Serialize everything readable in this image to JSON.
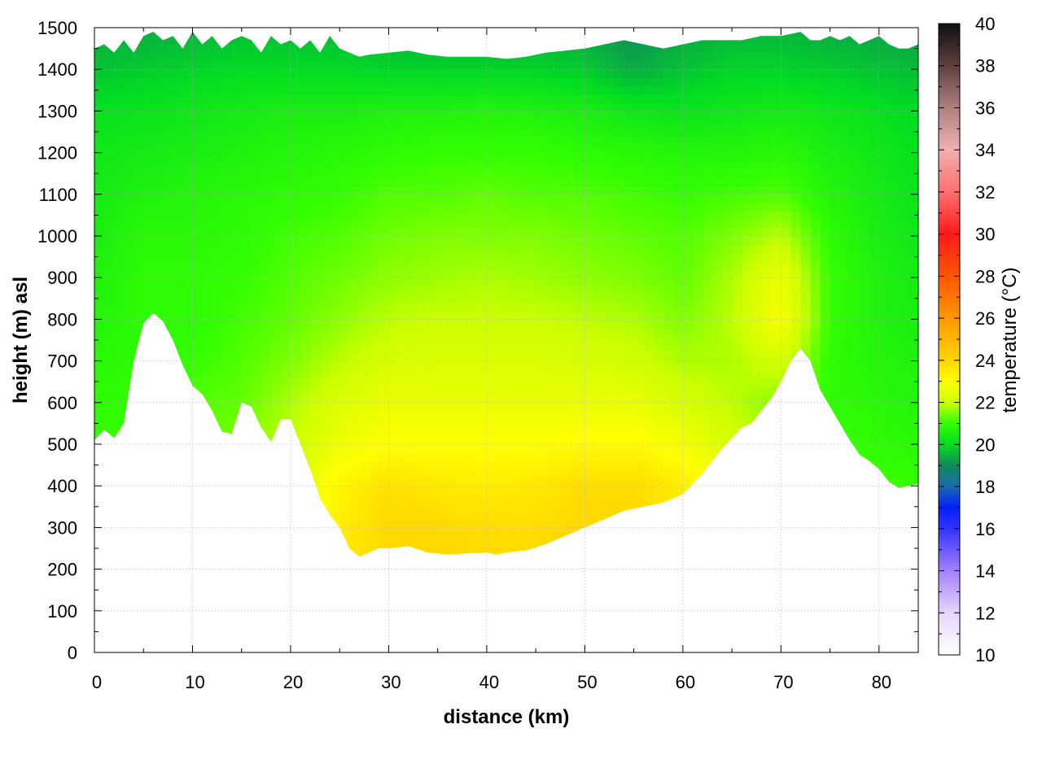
{
  "chart_data": {
    "type": "heatmap",
    "title": "",
    "xlabel": "distance (km)",
    "ylabel": "height (m) asl",
    "colorbar_label": "temperature (°C)",
    "xlim": [
      0,
      84
    ],
    "ylim": [
      0,
      1500
    ],
    "x_ticks": [
      0,
      10,
      20,
      30,
      40,
      50,
      60,
      70,
      80
    ],
    "y_ticks": [
      0,
      100,
      200,
      300,
      400,
      500,
      600,
      700,
      800,
      900,
      1000,
      1100,
      1200,
      1300,
      1400,
      1500
    ],
    "colorbar_range": [
      10,
      40
    ],
    "colorbar_ticks": [
      10,
      12,
      14,
      16,
      18,
      20,
      22,
      24,
      26,
      28,
      30,
      32,
      34,
      36,
      38,
      40
    ],
    "colormap": [
      {
        "t": 10,
        "color": "#ffffff"
      },
      {
        "t": 12,
        "color": "#e6d5ff"
      },
      {
        "t": 14,
        "color": "#a480ff"
      },
      {
        "t": 16,
        "color": "#3333ff"
      },
      {
        "t": 17,
        "color": "#0020ff"
      },
      {
        "t": 18,
        "color": "#1a6ab0"
      },
      {
        "t": 19,
        "color": "#118a5a"
      },
      {
        "t": 20,
        "color": "#00dd22"
      },
      {
        "t": 21,
        "color": "#33ff00"
      },
      {
        "t": 22,
        "color": "#ccff00"
      },
      {
        "t": 23,
        "color": "#ffff00"
      },
      {
        "t": 24,
        "color": "#ffd400"
      },
      {
        "t": 26,
        "color": "#ff9900"
      },
      {
        "t": 28,
        "color": "#ff5500"
      },
      {
        "t": 30,
        "color": "#ff1a1a"
      },
      {
        "t": 32,
        "color": "#ff6f6f"
      },
      {
        "t": 34,
        "color": "#f0b0b0"
      },
      {
        "t": 36,
        "color": "#b08080"
      },
      {
        "t": 38,
        "color": "#604040"
      },
      {
        "t": 40,
        "color": "#101010"
      }
    ],
    "grid": true,
    "terrain_profile": {
      "x_km": [
        0,
        1,
        2,
        3,
        4,
        5,
        6,
        7,
        8,
        9,
        10,
        11,
        12,
        13,
        14,
        15,
        16,
        17,
        18,
        19,
        20,
        21,
        22,
        23,
        24,
        25,
        26,
        27,
        28,
        29,
        30,
        32,
        34,
        36,
        38,
        40,
        41,
        42,
        44,
        46,
        48,
        50,
        52,
        54,
        56,
        58,
        60,
        62,
        64,
        66,
        67,
        68,
        69,
        70,
        71,
        72,
        73,
        74,
        75,
        76,
        77,
        78,
        79,
        80,
        81,
        82,
        83,
        84
      ],
      "height_m": [
        510,
        535,
        515,
        550,
        700,
        790,
        815,
        795,
        750,
        690,
        640,
        620,
        580,
        530,
        525,
        600,
        590,
        540,
        505,
        560,
        560,
        500,
        440,
        370,
        330,
        300,
        250,
        230,
        240,
        250,
        250,
        255,
        240,
        235,
        238,
        240,
        235,
        240,
        245,
        260,
        280,
        300,
        320,
        340,
        350,
        360,
        380,
        430,
        490,
        540,
        550,
        580,
        610,
        650,
        700,
        730,
        700,
        630,
        590,
        550,
        510,
        475,
        460,
        440,
        410,
        395,
        400,
        405
      ]
    },
    "temperature_field": {
      "x_km": [
        0,
        5,
        10,
        15,
        20,
        25,
        30,
        35,
        40,
        45,
        50,
        55,
        60,
        65,
        70,
        75,
        80,
        84
      ],
      "height_m": [
        200,
        300,
        400,
        500,
        600,
        700,
        800,
        900,
        1000,
        1100,
        1200,
        1300,
        1400,
        1500
      ],
      "values_c": [
        [
          21.2,
          21.3,
          21.5,
          21.8,
          22.5,
          23.4,
          23.9,
          23.9,
          23.8,
          23.8,
          23.9,
          23.9,
          23.6,
          22.8,
          22.0,
          21.4,
          21.2,
          21.1
        ],
        [
          21.2,
          21.3,
          21.5,
          21.8,
          22.5,
          23.4,
          23.9,
          23.9,
          23.8,
          23.8,
          23.9,
          23.9,
          23.6,
          22.8,
          22.0,
          21.4,
          21.2,
          21.1
        ],
        [
          21.2,
          21.3,
          21.5,
          21.8,
          22.4,
          23.2,
          23.7,
          23.5,
          23.4,
          23.5,
          23.8,
          23.8,
          23.4,
          22.6,
          21.9,
          21.3,
          21.1,
          21.0
        ],
        [
          21.0,
          21.1,
          21.3,
          21.5,
          22.0,
          22.7,
          23.0,
          23.0,
          23.0,
          23.0,
          23.1,
          23.1,
          22.8,
          22.2,
          21.6,
          21.1,
          20.9,
          20.8
        ],
        [
          20.9,
          21.0,
          21.2,
          21.3,
          21.8,
          22.3,
          22.6,
          22.6,
          22.6,
          22.6,
          22.6,
          22.6,
          22.2,
          21.9,
          21.5,
          20.9,
          20.8,
          20.7
        ],
        [
          20.8,
          20.9,
          21.0,
          21.2,
          21.5,
          21.9,
          22.2,
          22.3,
          22.3,
          22.3,
          22.2,
          22.1,
          21.8,
          21.8,
          22.2,
          20.9,
          20.7,
          20.6
        ],
        [
          20.7,
          20.9,
          20.9,
          21.1,
          21.3,
          21.6,
          21.9,
          22.0,
          22.0,
          22.0,
          21.9,
          21.8,
          21.5,
          21.9,
          22.9,
          21.0,
          20.6,
          20.5
        ],
        [
          20.6,
          20.9,
          20.9,
          21.0,
          21.2,
          21.4,
          21.6,
          21.7,
          21.8,
          21.7,
          21.6,
          21.5,
          21.3,
          21.8,
          22.6,
          21.0,
          20.6,
          20.4
        ],
        [
          20.5,
          20.8,
          20.8,
          20.9,
          21.1,
          21.2,
          21.4,
          21.5,
          21.5,
          21.5,
          21.4,
          21.3,
          21.2,
          21.5,
          21.9,
          20.9,
          20.5,
          20.3
        ],
        [
          20.4,
          20.6,
          20.7,
          20.8,
          20.9,
          21.0,
          21.2,
          21.2,
          21.3,
          21.2,
          21.2,
          21.1,
          21.0,
          21.1,
          21.2,
          20.7,
          20.4,
          20.2
        ],
        [
          20.3,
          20.4,
          20.5,
          20.6,
          20.7,
          20.8,
          20.9,
          21.0,
          21.0,
          21.0,
          20.9,
          20.8,
          20.7,
          20.7,
          20.8,
          20.5,
          20.3,
          20.1
        ],
        [
          20.1,
          20.2,
          20.3,
          20.4,
          20.5,
          20.5,
          20.6,
          20.6,
          20.7,
          20.6,
          20.5,
          20.3,
          20.2,
          20.3,
          20.4,
          20.3,
          20.1,
          20.0
        ],
        [
          19.7,
          19.8,
          19.9,
          20.0,
          20.0,
          20.0,
          19.9,
          19.9,
          19.9,
          19.9,
          19.8,
          19.4,
          19.7,
          19.9,
          19.9,
          19.8,
          19.7,
          19.6
        ],
        [
          19.4,
          19.4,
          19.5,
          19.6,
          19.6,
          19.5,
          19.4,
          19.4,
          19.4,
          19.4,
          19.3,
          19.0,
          19.3,
          19.5,
          19.5,
          19.4,
          19.3,
          19.2
        ]
      ]
    },
    "top_boundary": {
      "x_km": [
        0,
        1,
        2,
        3,
        4,
        5,
        6,
        7,
        8,
        9,
        10,
        11,
        12,
        13,
        14,
        15,
        16,
        17,
        18,
        19,
        20,
        21,
        22,
        23,
        24,
        25,
        26,
        27,
        28,
        30,
        32,
        34,
        36,
        38,
        40,
        42,
        44,
        46,
        48,
        50,
        52,
        54,
        56,
        58,
        60,
        62,
        64,
        66,
        68,
        70,
        71,
        72,
        73,
        74,
        75,
        76,
        77,
        78,
        79,
        80,
        81,
        82,
        83,
        84
      ],
      "height_m": [
        1450,
        1460,
        1440,
        1470,
        1440,
        1480,
        1490,
        1470,
        1480,
        1450,
        1490,
        1460,
        1480,
        1450,
        1470,
        1480,
        1470,
        1440,
        1480,
        1460,
        1470,
        1450,
        1470,
        1440,
        1480,
        1450,
        1440,
        1430,
        1435,
        1440,
        1445,
        1435,
        1430,
        1430,
        1430,
        1425,
        1430,
        1440,
        1445,
        1450,
        1460,
        1470,
        1460,
        1450,
        1460,
        1470,
        1470,
        1470,
        1480,
        1480,
        1485,
        1490,
        1470,
        1470,
        1480,
        1470,
        1480,
        1460,
        1470,
        1480,
        1460,
        1450,
        1450,
        1460
      ]
    }
  }
}
